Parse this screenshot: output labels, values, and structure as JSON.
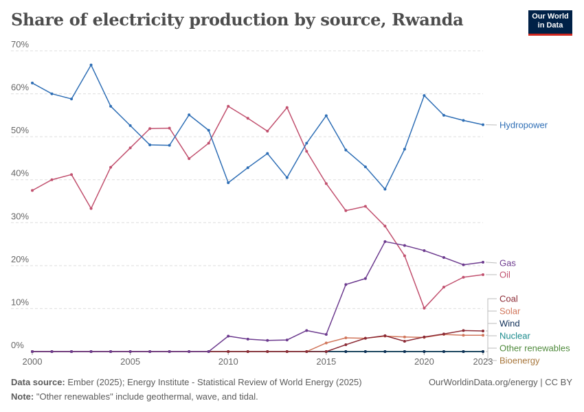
{
  "header": {
    "title": "Share of electricity production by source, Rwanda",
    "logo_line1": "Our World",
    "logo_line2": "in Data"
  },
  "footer": {
    "source_label": "Data source:",
    "source_text": "Ember (2025); Energy Institute - Statistical Review of World Energy (2025)",
    "note_label": "Note:",
    "note_text": "\"Other renewables\" include geothermal, wave, and tidal.",
    "credit": "OurWorldinData.org/energy | CC BY"
  },
  "chart_data": {
    "type": "line",
    "title": "Share of electricity production by source, Rwanda",
    "xlabel": "",
    "ylabel": "",
    "xlim": [
      2000,
      2023
    ],
    "ylim": [
      0,
      70
    ],
    "x_ticks": [
      2000,
      2005,
      2010,
      2015,
      2020,
      2023
    ],
    "y_ticks": [
      0,
      10,
      20,
      30,
      40,
      50,
      60,
      70
    ],
    "y_tick_labels": [
      "0%",
      "10%",
      "20%",
      "30%",
      "40%",
      "50%",
      "60%",
      "70%"
    ],
    "grid": true,
    "x": [
      2000,
      2001,
      2002,
      2003,
      2004,
      2005,
      2006,
      2007,
      2008,
      2009,
      2010,
      2011,
      2012,
      2013,
      2014,
      2015,
      2016,
      2017,
      2018,
      2019,
      2020,
      2021,
      2022,
      2023
    ],
    "series": [
      {
        "name": "Hydropower",
        "color": "#2e6eb5",
        "label_value": 52.8,
        "values": [
          62.5,
          60.0,
          58.8,
          66.7,
          57.1,
          52.6,
          48.1,
          48.0,
          55.1,
          51.5,
          39.3,
          42.8,
          46.1,
          40.5,
          48.5,
          54.9,
          46.9,
          43.0,
          37.8,
          47.1,
          59.6,
          55.0,
          53.8,
          52.8
        ]
      },
      {
        "name": "Gas",
        "color": "#6c3a8e",
        "label_value": 20.8,
        "values": [
          0,
          0,
          0,
          0,
          0,
          0,
          0,
          0,
          0,
          0,
          3.6,
          2.9,
          2.6,
          2.7,
          4.9,
          4.0,
          15.6,
          17.0,
          25.6,
          24.7,
          23.5,
          21.9,
          20.2,
          20.8
        ]
      },
      {
        "name": "Oil",
        "color": "#c1506e",
        "label_value": 17.9,
        "values": [
          37.5,
          40.0,
          41.2,
          33.3,
          42.9,
          47.4,
          51.9,
          52.0,
          44.9,
          48.5,
          57.1,
          54.3,
          51.3,
          56.8,
          46.6,
          39.1,
          32.8,
          33.8,
          29.2,
          22.3,
          10.1,
          15.0,
          17.3,
          17.9
        ]
      },
      {
        "name": "Coal",
        "color": "#8b2a35",
        "label_value": 4.8,
        "values": [
          0,
          0,
          0,
          0,
          0,
          0,
          0,
          0,
          0,
          0,
          0,
          0,
          0,
          0,
          0,
          0,
          1.6,
          3.1,
          3.7,
          2.4,
          3.4,
          4.1,
          4.9,
          4.8
        ]
      },
      {
        "name": "Solar",
        "color": "#d1765b",
        "label_value": 3.8,
        "values": [
          0,
          0,
          0,
          0,
          0,
          0,
          0,
          0,
          0,
          0,
          0,
          0,
          0,
          0,
          0,
          2.0,
          3.2,
          3.1,
          3.6,
          3.4,
          3.3,
          4.0,
          3.8,
          3.8
        ]
      },
      {
        "name": "Wind",
        "color": "#0d2d56",
        "label_value": 0,
        "values": [
          0,
          0,
          0,
          0,
          0,
          0,
          0,
          0,
          0,
          0,
          0,
          0,
          0,
          0,
          0,
          0,
          0,
          0,
          0,
          0,
          0,
          0,
          0,
          0
        ]
      },
      {
        "name": "Nuclear",
        "color": "#1a8a8c",
        "label_value": 0,
        "values": [
          0,
          0,
          0,
          0,
          0,
          0,
          0,
          0,
          0,
          0,
          0,
          0,
          0,
          0,
          0,
          0,
          0,
          0,
          0,
          0,
          0,
          0,
          0,
          0
        ]
      },
      {
        "name": "Other renewables",
        "color": "#4f8a3c",
        "label_value": 0,
        "values": [
          0,
          0,
          0,
          0,
          0,
          0,
          0,
          0,
          0,
          0,
          0,
          0,
          0,
          0,
          0,
          0,
          0,
          0,
          0,
          0,
          0,
          0,
          0,
          0
        ]
      },
      {
        "name": "Bioenergy",
        "color": "#a8773c",
        "label_value": 0,
        "values": [
          0,
          0,
          0,
          0,
          0,
          0,
          0,
          0,
          0,
          0,
          0,
          0,
          0,
          0,
          0,
          0,
          0,
          0,
          0,
          0,
          0,
          0,
          0,
          0
        ]
      }
    ]
  }
}
